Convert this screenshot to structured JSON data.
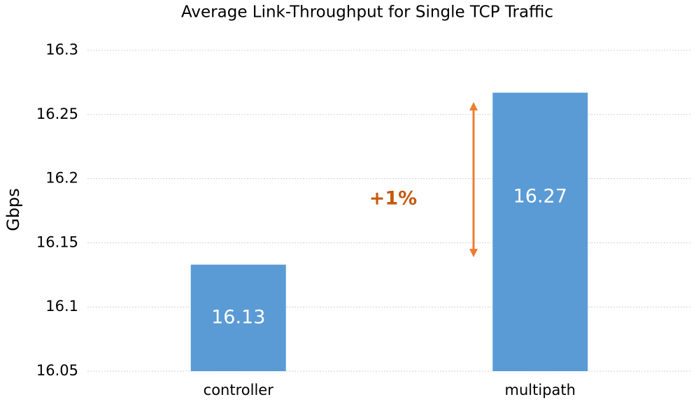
{
  "chart_data": {
    "type": "bar",
    "title": "Average  Link-Throughput for Single TCP Traffic",
    "y_label": "Gbps",
    "categories": [
      "controller",
      "multipath"
    ],
    "values": [
      16.133,
      16.267
    ],
    "value_labels": [
      "16.13",
      "16.27"
    ],
    "color": "#5b9bd5",
    "ylim": [
      16.05,
      16.3
    ],
    "yticks": [
      16.05,
      16.1,
      16.15,
      16.2,
      16.25,
      16.3
    ],
    "grid": true,
    "annotation": "+1%"
  }
}
